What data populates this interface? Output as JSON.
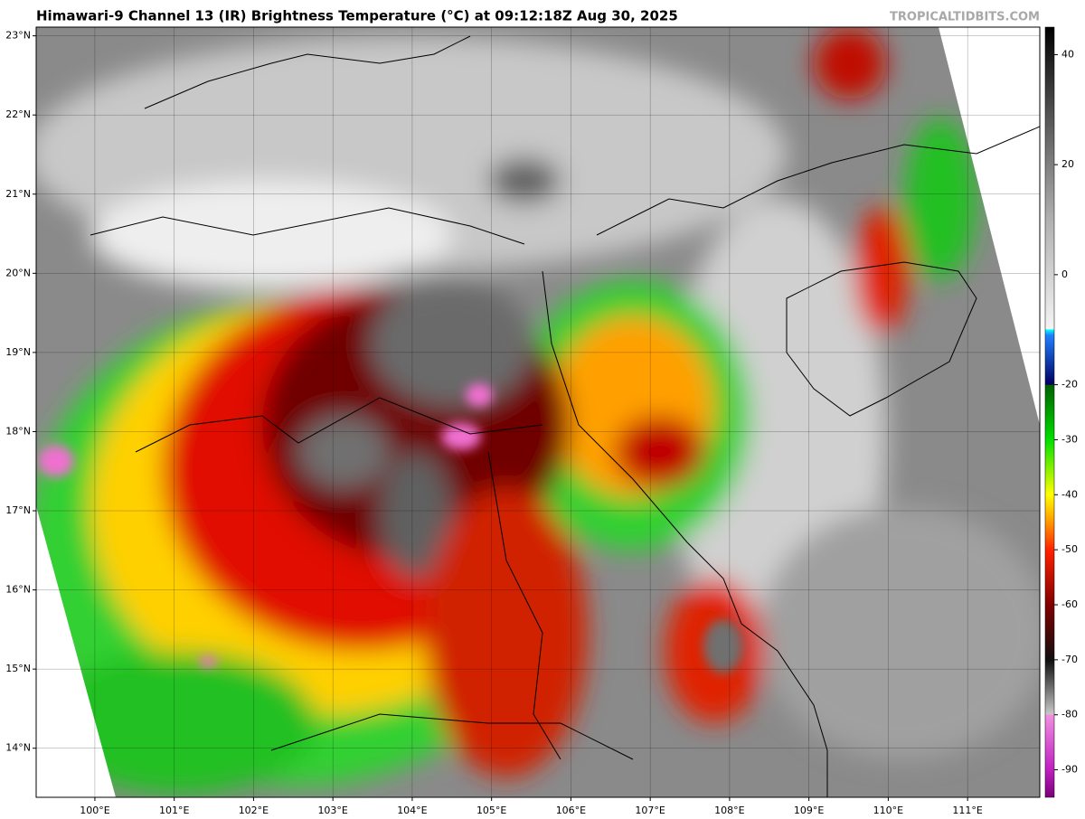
{
  "header": {
    "title": "Himawari-9 Channel 13 (IR) Brightness Temperature (°C) at 09:12:18Z Aug 30, 2025",
    "watermark": "TROPICALTIDBITS.COM"
  },
  "map": {
    "xlim": [
      99.26,
      111.91
    ],
    "ylim": [
      13.38,
      23.11
    ],
    "xticks": [
      {
        "value": 100,
        "label": "100°E"
      },
      {
        "value": 101,
        "label": "101°E"
      },
      {
        "value": 102,
        "label": "102°E"
      },
      {
        "value": 103,
        "label": "103°E"
      },
      {
        "value": 104,
        "label": "104°E"
      },
      {
        "value": 105,
        "label": "105°E"
      },
      {
        "value": 106,
        "label": "106°E"
      },
      {
        "value": 107,
        "label": "107°E"
      },
      {
        "value": 108,
        "label": "108°E"
      },
      {
        "value": 109,
        "label": "109°E"
      },
      {
        "value": 110,
        "label": "110°E"
      },
      {
        "value": 111,
        "label": "111°E"
      }
    ],
    "yticks": [
      {
        "value": 14,
        "label": "14°N"
      },
      {
        "value": 15,
        "label": "15°N"
      },
      {
        "value": 16,
        "label": "16°N"
      },
      {
        "value": 17,
        "label": "17°N"
      },
      {
        "value": 18,
        "label": "18°N"
      },
      {
        "value": 19,
        "label": "19°N"
      },
      {
        "value": 20,
        "label": "20°N"
      },
      {
        "value": 21,
        "label": "21°N"
      },
      {
        "value": 22,
        "label": "22°N"
      },
      {
        "value": 23,
        "label": "23°N"
      }
    ],
    "grid": true
  },
  "colorbar": {
    "lim": [
      -95,
      45
    ],
    "ticks": [
      40,
      20,
      0,
      -20,
      -30,
      -40,
      -50,
      -60,
      -70,
      -80,
      -90
    ]
  }
}
